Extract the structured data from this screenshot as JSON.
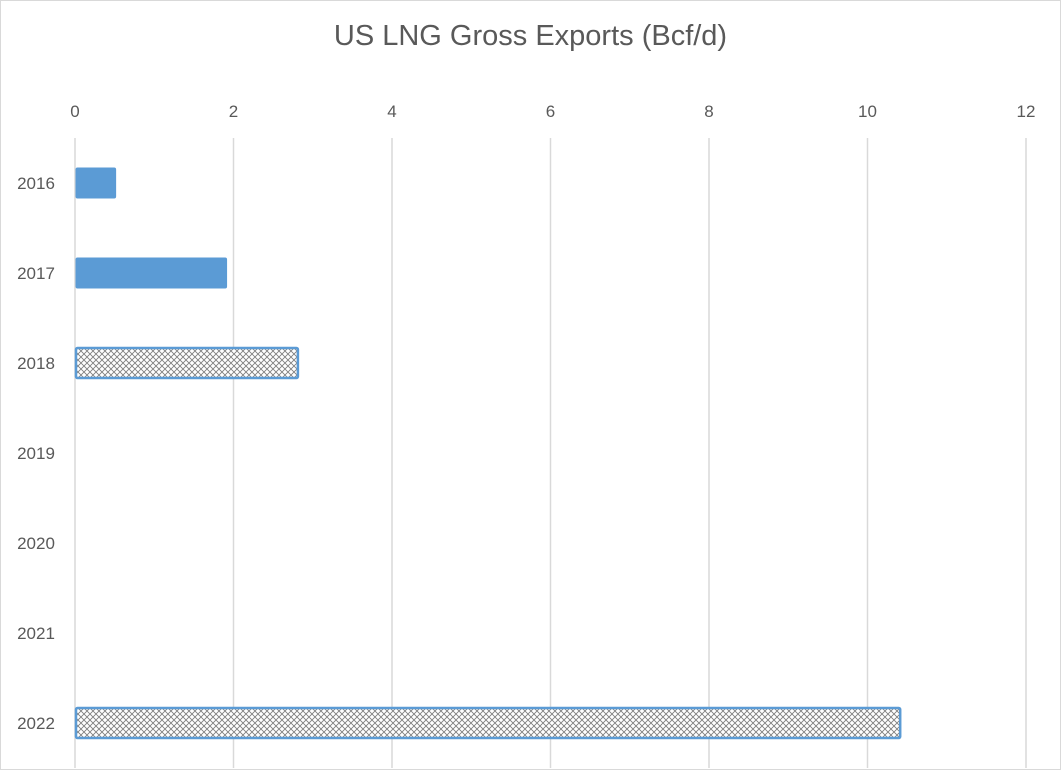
{
  "chart_data": {
    "type": "bar",
    "orientation": "horizontal",
    "title": "US LNG Gross Exports (Bcf/d)",
    "xlabel": "",
    "ylabel": "",
    "categories": [
      "2016",
      "2017",
      "2018",
      "2019",
      "2020",
      "2021",
      "2022"
    ],
    "values": [
      0.5,
      1.9,
      2.8,
      null,
      null,
      null,
      10.4
    ],
    "fill_styles": [
      "solid",
      "solid",
      "hatched",
      "none",
      "none",
      "none",
      "hatched"
    ],
    "xlim": [
      0,
      12
    ],
    "x_ticks": [
      "0",
      "2",
      "4",
      "6",
      "8",
      "10",
      "12"
    ],
    "x_axis_position": "top",
    "grid": true,
    "legend": "none",
    "colors": {
      "bar": "#5b9bd5",
      "bar_border": "#5b9bd5",
      "hatch": "#7f7f7f",
      "grid": "#d9d9d9",
      "text": "#595959"
    }
  }
}
